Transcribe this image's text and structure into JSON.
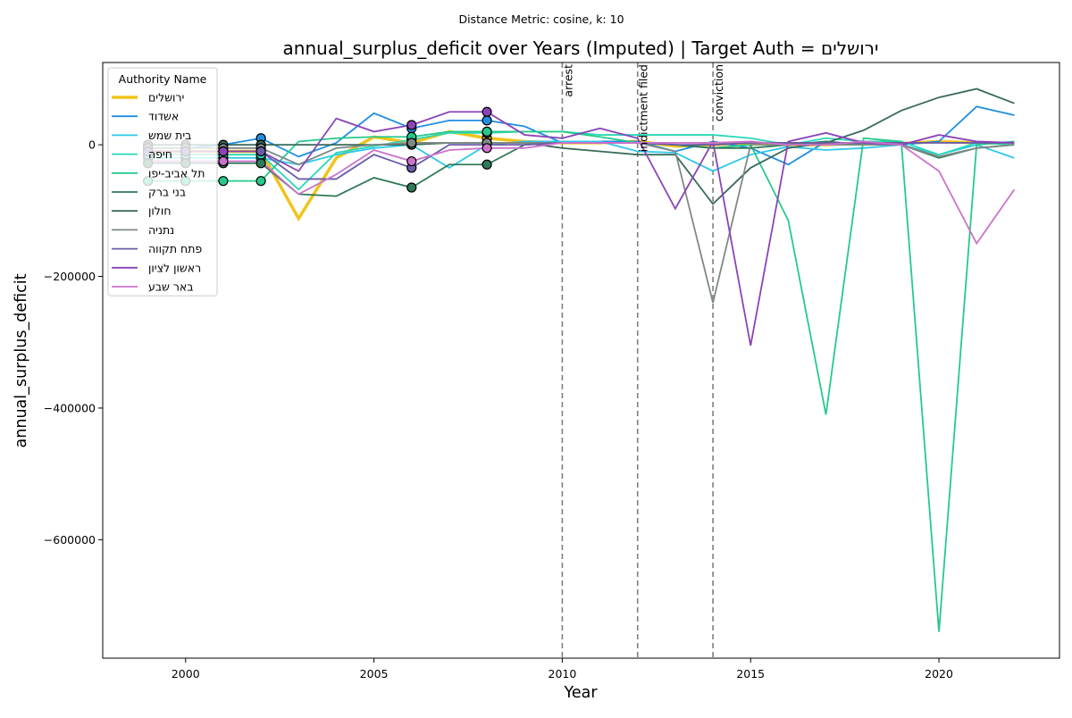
{
  "chart_data": {
    "type": "line",
    "suptitle": "Distance Metric: cosine, k: 10",
    "title": "annual_surplus_deficit over Years (Imputed) | Target Auth = ירושלים",
    "xlabel": "Year",
    "ylabel": "annual_surplus_deficit",
    "xlim": [
      1997.8,
      2023.2
    ],
    "ylim": [
      -780000,
      125000
    ],
    "xticks": [
      2000,
      2005,
      2010,
      2015,
      2020
    ],
    "yticks": [
      0,
      -200000,
      -400000,
      -600000
    ],
    "ytick_labels": [
      "0",
      "−200000",
      "−400000",
      "−600000"
    ],
    "grid": false,
    "legend": {
      "title": "Authority Name",
      "placement": "upper left"
    },
    "events": [
      {
        "x": 2010,
        "label": "arrest"
      },
      {
        "x": 2012,
        "label": "indictment filed"
      },
      {
        "x": 2014,
        "label": "conviction"
      }
    ],
    "x": [
      1999,
      2000,
      2001,
      2002,
      2003,
      2004,
      2005,
      2006,
      2007,
      2008,
      2009,
      2010,
      2011,
      2012,
      2013,
      2014,
      2015,
      2016,
      2017,
      2018,
      2019,
      2020,
      2021,
      2022
    ],
    "series": [
      {
        "name": "ירושלים",
        "color": "#f0c419",
        "width": 3.5,
        "values": [
          -10000,
          -10000,
          -10000,
          -10000,
          -112000,
          -20000,
          12000,
          3000,
          20000,
          10000,
          5000,
          3000,
          3000,
          5000,
          -2000,
          0,
          3000,
          0,
          0,
          3000,
          2000,
          5000,
          3000,
          2000
        ],
        "imputed_years": [
          1999,
          2000,
          2001,
          2002,
          2006,
          2008
        ]
      },
      {
        "name": "אשדוד",
        "color": "#1f8fe0",
        "width": 1.8,
        "values": [
          -5000,
          -5000,
          0,
          10000,
          -18000,
          3000,
          48000,
          25000,
          37000,
          37000,
          28000,
          3000,
          5000,
          5000,
          -10000,
          5000,
          -5000,
          -30000,
          5000,
          0,
          0,
          5000,
          58000,
          45000
        ],
        "imputed_years": [
          2002,
          2006,
          2008
        ]
      },
      {
        "name": "בית שמש",
        "color": "#2ec8e8",
        "width": 1.8,
        "values": [
          -20000,
          -20000,
          -20000,
          -20000,
          -30000,
          -15000,
          -5000,
          0,
          -35000,
          0,
          5000,
          5000,
          5000,
          -10000,
          -12000,
          -40000,
          -15000,
          -3000,
          -8000,
          -5000,
          0,
          -15000,
          0,
          -20000
        ],
        "imputed_years": [
          1999,
          2000,
          2001,
          2002
        ]
      },
      {
        "name": "חיפה",
        "color": "#2ad8b8",
        "width": 1.8,
        "values": [
          -15000,
          -15000,
          -15000,
          -15000,
          -68000,
          -12000,
          -2000,
          8000,
          18000,
          18000,
          20000,
          20000,
          15000,
          15000,
          15000,
          15000,
          10000,
          0,
          10000,
          5000,
          5000,
          -15000,
          3000,
          0
        ],
        "imputed_years": [
          1999,
          2000,
          2001,
          2002,
          2006,
          2008
        ]
      },
      {
        "name": "תל אביב-יפו",
        "color": "#26c98b",
        "width": 1.8,
        "values": [
          -55000,
          -55000,
          -55000,
          -55000,
          5000,
          10000,
          12000,
          12000,
          20000,
          20000,
          20000,
          20000,
          12000,
          3000,
          0,
          -5000,
          0,
          -115000,
          -410000,
          10000,
          5000,
          -740000,
          0,
          5000
        ],
        "imputed_years": [
          1999,
          2000,
          2001,
          2002,
          2006,
          2008
        ]
      },
      {
        "name": "בני ברק",
        "color": "#2f7a58",
        "width": 1.8,
        "values": [
          -28000,
          -28000,
          -28000,
          -28000,
          -75000,
          -78000,
          -50000,
          -65000,
          -30000,
          -30000,
          0,
          3000,
          3000,
          3000,
          0,
          -5000,
          -5000,
          0,
          5000,
          0,
          0,
          -20000,
          -5000,
          0
        ],
        "imputed_years": [
          1999,
          2000,
          2001,
          2002,
          2006,
          2008
        ]
      },
      {
        "name": "חולון",
        "color": "#3a6a5c",
        "width": 1.8,
        "values": [
          0,
          0,
          0,
          0,
          0,
          0,
          0,
          0,
          3000,
          3000,
          3000,
          -5000,
          -10000,
          -15000,
          -15000,
          -90000,
          -35000,
          -5000,
          3000,
          22000,
          52000,
          72000,
          85000,
          63000
        ],
        "imputed_years": [
          1999,
          2000,
          2001,
          2002,
          2006,
          2008
        ]
      },
      {
        "name": "נתניה",
        "color": "#7f8a86",
        "width": 1.8,
        "values": [
          -5000,
          -5000,
          -5000,
          -5000,
          -30000,
          -5000,
          0,
          3000,
          3000,
          3000,
          3000,
          3000,
          3000,
          3000,
          -10000,
          -240000,
          0,
          0,
          0,
          0,
          0,
          -18000,
          -5000,
          0
        ],
        "imputed_years": [
          1999,
          2000,
          2001,
          2002,
          2006,
          2008
        ]
      },
      {
        "name": "פתח תקווה",
        "color": "#6a5ba8",
        "width": 1.8,
        "values": [
          -10000,
          -10000,
          -10000,
          -10000,
          -52000,
          -52000,
          -15000,
          -35000,
          0,
          0,
          0,
          3000,
          3000,
          3000,
          0,
          0,
          3000,
          3000,
          3000,
          3000,
          3000,
          3000,
          3000,
          3000
        ],
        "imputed_years": [
          1999,
          2000,
          2001,
          2002,
          2006
        ]
      },
      {
        "name": "ראשון לציון",
        "color": "#8a44b8",
        "width": 1.8,
        "values": [
          -10000,
          -10000,
          -10000,
          -10000,
          -40000,
          40000,
          20000,
          30000,
          50000,
          50000,
          15000,
          10000,
          25000,
          10000,
          -97000,
          5000,
          -305000,
          5000,
          18000,
          3000,
          0,
          15000,
          5000,
          3000
        ],
        "imputed_years": [
          2001,
          2006,
          2008
        ]
      },
      {
        "name": "באר שבע",
        "color": "#cc72cc",
        "width": 1.8,
        "values": [
          -25000,
          -25000,
          -25000,
          -25000,
          -75000,
          -45000,
          -8000,
          -25000,
          -8000,
          -5000,
          -5000,
          3000,
          3000,
          3000,
          3000,
          3000,
          5000,
          0,
          0,
          5000,
          0,
          -40000,
          -150000,
          -68000
        ],
        "imputed_years": [
          2001,
          2006,
          2008
        ]
      }
    ]
  }
}
